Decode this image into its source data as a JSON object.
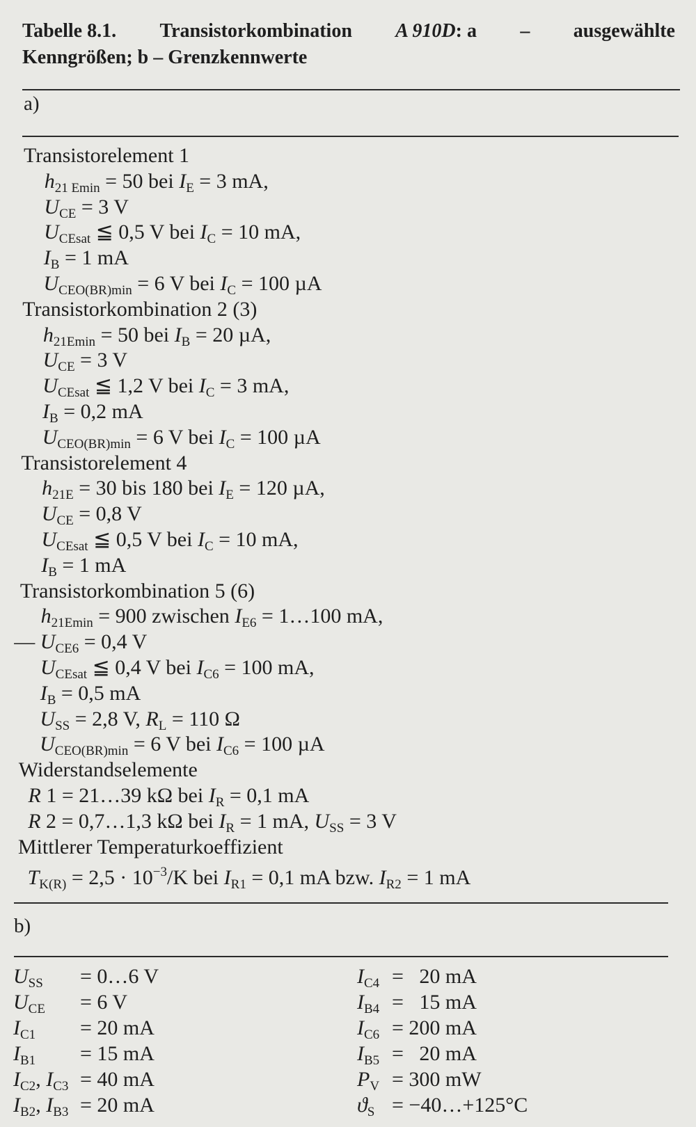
{
  "title": {
    "line1": [
      "Tabelle 8.1.",
      "Transistorkombination",
      "A 910D",
      ": a",
      "–",
      "ausgewählte"
    ],
    "line2": "Kenngrößen; b – Grenzkennwerte"
  },
  "section_a": {
    "label": "a)",
    "lines": [
      {
        "kind": "heading",
        "seg": [
          [
            "Transistorelement 1",
            ""
          ]
        ]
      },
      {
        "kind": "item",
        "seg": [
          [
            "h",
            "i"
          ],
          [
            "21 Emin",
            "s"
          ],
          [
            " = 50 bei ",
            ""
          ],
          [
            "I",
            "i"
          ],
          [
            "E",
            "s"
          ],
          [
            " = 3 mA,",
            ""
          ]
        ]
      },
      {
        "kind": "item",
        "seg": [
          [
            "U",
            "i"
          ],
          [
            "CE",
            "s"
          ],
          [
            " = 3 V",
            ""
          ]
        ]
      },
      {
        "kind": "item",
        "seg": [
          [
            "U",
            "i"
          ],
          [
            "CEsat",
            "s"
          ],
          [
            " ≦ 0,5 V bei ",
            ""
          ],
          [
            "I",
            "i"
          ],
          [
            "C",
            "s"
          ],
          [
            " = 10 mA,",
            ""
          ]
        ]
      },
      {
        "kind": "item",
        "seg": [
          [
            "I",
            "i"
          ],
          [
            "B",
            "s"
          ],
          [
            " = 1 mA",
            ""
          ]
        ]
      },
      {
        "kind": "item",
        "seg": [
          [
            "U",
            "i"
          ],
          [
            "CEO(BR)min",
            "s"
          ],
          [
            " = 6 V bei ",
            ""
          ],
          [
            "I",
            "i"
          ],
          [
            "C",
            "s"
          ],
          [
            " = 100 µA",
            ""
          ]
        ]
      },
      {
        "kind": "heading",
        "seg": [
          [
            "Transistorkombination 2 (3)",
            ""
          ]
        ]
      },
      {
        "kind": "item",
        "seg": [
          [
            "h",
            "i"
          ],
          [
            "21Emin",
            "s"
          ],
          [
            " = 50 bei ",
            ""
          ],
          [
            "I",
            "i"
          ],
          [
            "B",
            "s"
          ],
          [
            " = 20 µA,",
            ""
          ]
        ]
      },
      {
        "kind": "item",
        "seg": [
          [
            "U",
            "i"
          ],
          [
            "CE",
            "s"
          ],
          [
            " = 3 V",
            ""
          ]
        ]
      },
      {
        "kind": "item",
        "seg": [
          [
            "U",
            "i"
          ],
          [
            "CEsat",
            "s"
          ],
          [
            " ≦ 1,2 V bei ",
            ""
          ],
          [
            "I",
            "i"
          ],
          [
            "C",
            "s"
          ],
          [
            " = 3 mA,",
            ""
          ]
        ]
      },
      {
        "kind": "item",
        "seg": [
          [
            "I",
            "i"
          ],
          [
            "B",
            "s"
          ],
          [
            " = 0,2 mA",
            ""
          ]
        ]
      },
      {
        "kind": "item",
        "seg": [
          [
            "U",
            "i"
          ],
          [
            "CEO(BR)min",
            "s"
          ],
          [
            " = 6 V bei ",
            ""
          ],
          [
            "I",
            "i"
          ],
          [
            "C",
            "s"
          ],
          [
            " = 100 µA",
            ""
          ]
        ]
      },
      {
        "kind": "heading",
        "seg": [
          [
            "Transistorelement 4",
            ""
          ]
        ]
      },
      {
        "kind": "item",
        "seg": [
          [
            "h",
            "i"
          ],
          [
            "21E",
            "s"
          ],
          [
            " = 30 bis 180 bei ",
            ""
          ],
          [
            "I",
            "i"
          ],
          [
            "E",
            "s"
          ],
          [
            " = 120 µA,",
            ""
          ]
        ]
      },
      {
        "kind": "item",
        "seg": [
          [
            "U",
            "i"
          ],
          [
            "CE",
            "s"
          ],
          [
            " = 0,8 V",
            ""
          ]
        ]
      },
      {
        "kind": "item",
        "seg": [
          [
            "U",
            "i"
          ],
          [
            "CEsat",
            "s"
          ],
          [
            " ≦ 0,5 V bei ",
            ""
          ],
          [
            "I",
            "i"
          ],
          [
            "C",
            "s"
          ],
          [
            " = 10 mA,",
            ""
          ]
        ]
      },
      {
        "kind": "item",
        "seg": [
          [
            "I",
            "i"
          ],
          [
            "B",
            "s"
          ],
          [
            " = 1 mA",
            ""
          ]
        ]
      },
      {
        "kind": "heading",
        "seg": [
          [
            "Transistorkombination 5 (6)",
            ""
          ]
        ]
      },
      {
        "kind": "item",
        "seg": [
          [
            "h",
            "i"
          ],
          [
            "21Emin",
            "s"
          ],
          [
            " = 900 zwischen ",
            ""
          ],
          [
            "I",
            "i"
          ],
          [
            "E6",
            "s"
          ],
          [
            " = 1…100 mA,",
            ""
          ]
        ]
      },
      {
        "kind": "dash",
        "seg": [
          [
            "— ",
            ""
          ],
          [
            "U",
            "i"
          ],
          [
            "CE6",
            "s"
          ],
          [
            " = 0,4 V",
            ""
          ]
        ]
      },
      {
        "kind": "item",
        "seg": [
          [
            "U",
            "i"
          ],
          [
            "CEsat",
            "s"
          ],
          [
            " ≦ 0,4 V bei ",
            ""
          ],
          [
            "I",
            "i"
          ],
          [
            "C6",
            "s"
          ],
          [
            " = 100 mA,",
            ""
          ]
        ]
      },
      {
        "kind": "item",
        "seg": [
          [
            "I",
            "i"
          ],
          [
            "B",
            "s"
          ],
          [
            " = 0,5 mA",
            ""
          ]
        ]
      },
      {
        "kind": "item",
        "seg": [
          [
            "U",
            "i"
          ],
          [
            "SS",
            "s"
          ],
          [
            " = 2,8 V, ",
            ""
          ],
          [
            "R",
            "i"
          ],
          [
            "L",
            "s"
          ],
          [
            " = 110 Ω",
            ""
          ]
        ]
      },
      {
        "kind": "item",
        "seg": [
          [
            "U",
            "i"
          ],
          [
            "CEO(BR)min",
            "s"
          ],
          [
            " = 6 V bei ",
            ""
          ],
          [
            "I",
            "i"
          ],
          [
            "C6",
            "s"
          ],
          [
            " = 100 µA",
            ""
          ]
        ]
      },
      {
        "kind": "heading",
        "seg": [
          [
            "Widerstandselemente",
            ""
          ]
        ]
      },
      {
        "kind": "small",
        "seg": [
          [
            "R",
            "i"
          ],
          [
            " 1 = 21…39 kΩ bei ",
            ""
          ],
          [
            "I",
            "i"
          ],
          [
            "R",
            "s"
          ],
          [
            " = 0,1 mA",
            ""
          ]
        ]
      },
      {
        "kind": "small",
        "seg": [
          [
            "R",
            "i"
          ],
          [
            " 2 = 0,7…1,3 kΩ bei ",
            ""
          ],
          [
            "I",
            "i"
          ],
          [
            "R",
            "s"
          ],
          [
            " = 1 mA, ",
            ""
          ],
          [
            "U",
            "i"
          ],
          [
            "SS",
            "s"
          ],
          [
            " = 3 V",
            ""
          ]
        ]
      },
      {
        "kind": "heading",
        "seg": [
          [
            "Mittlerer Temperaturkoeffizient",
            ""
          ]
        ]
      },
      {
        "kind": "small",
        "seg": [
          [
            "T",
            "i"
          ],
          [
            "K(R)",
            "s"
          ],
          [
            " = 2,5 · 10",
            ""
          ],
          [
            "−3",
            "p"
          ],
          [
            "/K bei ",
            ""
          ],
          [
            "I",
            "i"
          ],
          [
            "R1",
            "s"
          ],
          [
            " = 0,1 mA bzw. ",
            ""
          ],
          [
            "I",
            "i"
          ],
          [
            "R2",
            "s"
          ],
          [
            " = 1 mA",
            ""
          ]
        ]
      }
    ]
  },
  "section_b": {
    "label": "b)",
    "left": [
      {
        "name": [
          [
            "U",
            "i"
          ],
          [
            "SS",
            "s"
          ]
        ],
        "value": "= 0…6 V"
      },
      {
        "name": [
          [
            "U",
            "i"
          ],
          [
            "CE",
            "s"
          ]
        ],
        "value": "= 6 V"
      },
      {
        "name": [
          [
            "I",
            "i"
          ],
          [
            "C1",
            "s"
          ]
        ],
        "value": "= 20 mA"
      },
      {
        "name": [
          [
            "I",
            "i"
          ],
          [
            "B1",
            "s"
          ]
        ],
        "value": "= 15 mA"
      },
      {
        "name": [
          [
            "I",
            "i"
          ],
          [
            "C2",
            "s"
          ],
          [
            ", ",
            ""
          ],
          [
            "I",
            "i"
          ],
          [
            "C3",
            "s"
          ]
        ],
        "value": "= 40 mA"
      },
      {
        "name": [
          [
            "I",
            "i"
          ],
          [
            "B2",
            "s"
          ],
          [
            ", ",
            ""
          ],
          [
            "I",
            "i"
          ],
          [
            "B3",
            "s"
          ]
        ],
        "value": "= 20 mA"
      }
    ],
    "right": [
      {
        "name": [
          [
            "I",
            "i"
          ],
          [
            "C4",
            "s"
          ]
        ],
        "value": "=   20 mA"
      },
      {
        "name": [
          [
            "I",
            "i"
          ],
          [
            "B4",
            "s"
          ]
        ],
        "value": "=   15 mA"
      },
      {
        "name": [
          [
            "I",
            "i"
          ],
          [
            "C6",
            "s"
          ]
        ],
        "value": "= 200 mA"
      },
      {
        "name": [
          [
            "I",
            "i"
          ],
          [
            "B5",
            "s"
          ]
        ],
        "value": "=   20 mA"
      },
      {
        "name": [
          [
            "P",
            "i"
          ],
          [
            "V",
            "s"
          ]
        ],
        "value": "= 300 mW"
      },
      {
        "name": [
          [
            "ϑ",
            "i"
          ],
          [
            "S",
            "s"
          ]
        ],
        "value": "= −40…+125°C"
      }
    ]
  }
}
